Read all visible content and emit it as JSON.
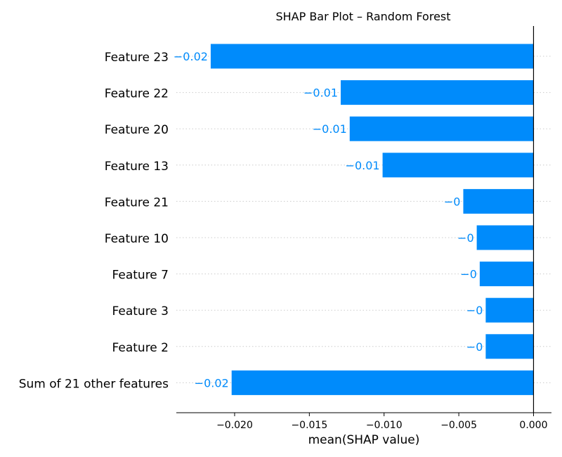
{
  "chart_data": {
    "type": "bar",
    "orientation": "horizontal",
    "title": "SHAP Bar Plot – Random Forest",
    "xlabel": "mean(SHAP value)",
    "ylabel": "",
    "categories": [
      "Feature 23",
      "Feature 22",
      "Feature 20",
      "Feature 13",
      "Feature 21",
      "Feature 10",
      "Feature 7",
      "Feature 3",
      "Feature 2",
      "Sum of 21 other features"
    ],
    "values": [
      -0.0216,
      -0.0129,
      -0.0123,
      -0.0101,
      -0.0047,
      -0.0038,
      -0.0036,
      -0.0032,
      -0.0032,
      -0.0202
    ],
    "data_labels": [
      "−0.02",
      "−0.01",
      "−0.01",
      "−0.01",
      "−0",
      "−0",
      "−0",
      "−0",
      "−0",
      "−0.02"
    ],
    "xlim": [
      -0.0239,
      0.0012
    ],
    "xticks": [
      -0.02,
      -0.015,
      -0.01,
      -0.005,
      0.0
    ],
    "xtick_labels": [
      "−0.020",
      "−0.015",
      "−0.010",
      "−0.005",
      "0.000"
    ],
    "bar_color": "#008bfb",
    "grid": "dotted horizontal guide lines per category",
    "zero_line": true
  }
}
